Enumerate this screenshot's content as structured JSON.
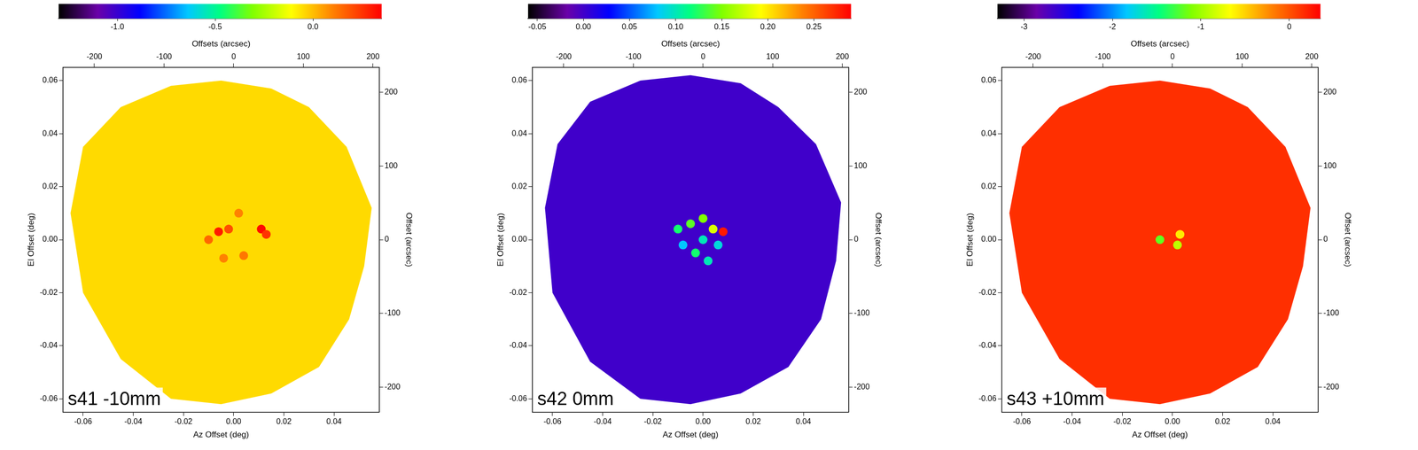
{
  "chart_data": [
    {
      "type": "scan_map",
      "title": "s41 -10mm",
      "x_label": "Az Offset (deg)",
      "y_label": "El Offset (deg)",
      "x2_label": "Offsets (arcsec)",
      "y2_label": "Offset (arcsec)",
      "xlim": [
        -0.068,
        0.058
      ],
      "xticks": [
        -0.06,
        -0.04,
        -0.02,
        {
          "value": 0,
          "label": "0.00"
        },
        0.02,
        0.04
      ],
      "ylim": [
        -0.065,
        0.065
      ],
      "yticks": [
        -0.06,
        -0.04,
        -0.02,
        {
          "value": 0,
          "label": "0.00"
        },
        0.02,
        0.04,
        0.06
      ],
      "x2lim": [
        -245,
        209
      ],
      "x2ticks": [
        -200,
        -100,
        0,
        100,
        200
      ],
      "y2lim": [
        -234,
        234
      ],
      "y2ticks": [
        -200,
        -100,
        0,
        100,
        200
      ],
      "grid": false,
      "colorbar": {
        "range": [
          -1.3,
          0.35
        ],
        "ticks": [
          {
            "value": -1,
            "label": "-1.0"
          },
          -0.5,
          {
            "value": 0,
            "label": "0.0"
          }
        ]
      },
      "coverage": {
        "x": [
          -0.065,
          -0.06,
          -0.045,
          -0.025,
          -0.005,
          0.015,
          0.03,
          0.045,
          0.055,
          0.052,
          0.046,
          0.034,
          0.015,
          -0.005,
          -0.025,
          -0.045,
          -0.06
        ],
        "y": [
          0.01,
          0.035,
          0.05,
          0.058,
          0.06,
          0.057,
          0.05,
          0.035,
          0.012,
          -0.01,
          -0.03,
          -0.048,
          -0.058,
          -0.062,
          -0.06,
          -0.045,
          -0.02
        ],
        "value": -0.05
      },
      "features": {
        "x": [
          -0.006,
          -0.002,
          0.011,
          0.013,
          -0.01,
          0.004,
          -0.004,
          0.002
        ],
        "y": [
          0.003,
          0.004,
          0.004,
          0.002,
          0.0,
          -0.006,
          -0.007,
          0.01
        ],
        "values": [
          0.3,
          0.2,
          0.33,
          0.25,
          0.15,
          0.12,
          0.1,
          0.1
        ]
      }
    },
    {
      "type": "scan_map",
      "title": "s42 0mm",
      "x_label": "Az Offset (deg)",
      "y_label": "El Offset (deg)",
      "x2_label": "Offsets (arcsec)",
      "y2_label": "Offset (arcsec)",
      "xlim": [
        -0.068,
        0.058
      ],
      "xticks": [
        -0.06,
        -0.04,
        -0.02,
        {
          "value": 0,
          "label": "0.00"
        },
        0.02,
        0.04
      ],
      "ylim": [
        -0.065,
        0.065
      ],
      "yticks": [
        -0.06,
        -0.04,
        -0.02,
        {
          "value": 0,
          "label": "0.00"
        },
        0.02,
        0.04,
        0.06
      ],
      "x2lim": [
        -245,
        209
      ],
      "x2ticks": [
        -200,
        -100,
        0,
        100,
        200
      ],
      "y2lim": [
        -234,
        234
      ],
      "y2ticks": [
        -200,
        -100,
        0,
        100,
        200
      ],
      "grid": false,
      "colorbar": {
        "range": [
          -0.06,
          0.29
        ],
        "ticks": [
          -0.05,
          {
            "value": 0,
            "label": "0.00"
          },
          0.05,
          {
            "value": 0.1,
            "label": "0.10"
          },
          0.15,
          {
            "value": 0.2,
            "label": "0.20"
          },
          0.25
        ]
      },
      "coverage": {
        "x": [
          -0.063,
          -0.058,
          -0.045,
          -0.025,
          -0.005,
          0.015,
          0.03,
          0.045,
          0.055,
          0.053,
          0.047,
          0.034,
          0.015,
          -0.005,
          -0.025,
          -0.045,
          -0.06
        ],
        "y": [
          0.012,
          0.036,
          0.052,
          0.06,
          0.062,
          0.059,
          0.05,
          0.036,
          0.014,
          -0.008,
          -0.03,
          -0.048,
          -0.058,
          -0.062,
          -0.06,
          -0.046,
          -0.02
        ],
        "value": 0.0
      },
      "features": {
        "x": [
          -0.01,
          -0.005,
          0.0,
          0.004,
          0.008,
          -0.003,
          0.002,
          -0.008,
          0.0,
          0.006
        ],
        "y": [
          0.004,
          0.006,
          0.008,
          0.004,
          0.003,
          -0.005,
          -0.008,
          -0.002,
          0.0,
          -0.002
        ],
        "values": [
          0.12,
          0.14,
          0.15,
          0.18,
          0.28,
          0.12,
          0.1,
          0.08,
          0.1,
          0.09
        ]
      }
    },
    {
      "type": "scan_map",
      "title": "s43 +10mm",
      "x_label": "Az Offset (deg)",
      "y_label": "El Offset (deg)",
      "x2_label": "Offsets (arcsec)",
      "y2_label": "Offset (arcsec)",
      "xlim": [
        -0.068,
        0.058
      ],
      "xticks": [
        -0.06,
        -0.04,
        -0.02,
        {
          "value": 0,
          "label": "0.00"
        },
        0.02,
        0.04
      ],
      "ylim": [
        -0.065,
        0.065
      ],
      "yticks": [
        -0.06,
        -0.04,
        -0.02,
        {
          "value": 0,
          "label": "0.00"
        },
        0.02,
        0.04,
        0.06
      ],
      "x2lim": [
        -245,
        209
      ],
      "x2ticks": [
        -200,
        -100,
        0,
        100,
        200
      ],
      "y2lim": [
        -234,
        234
      ],
      "y2ticks": [
        -200,
        -100,
        0,
        100,
        200
      ],
      "grid": false,
      "colorbar": {
        "range": [
          -3.3,
          0.35
        ],
        "ticks": [
          -3,
          -2,
          -1,
          0
        ]
      },
      "coverage": {
        "x": [
          -0.065,
          -0.06,
          -0.045,
          -0.025,
          -0.005,
          0.015,
          0.03,
          0.045,
          0.055,
          0.052,
          0.046,
          0.034,
          0.015,
          -0.005,
          -0.025,
          -0.045,
          -0.06
        ],
        "y": [
          0.01,
          0.035,
          0.05,
          0.058,
          0.06,
          0.057,
          0.05,
          0.035,
          0.012,
          -0.01,
          -0.03,
          -0.048,
          -0.058,
          -0.062,
          -0.06,
          -0.045,
          -0.02
        ],
        "value": 0.15
      },
      "features": {
        "x": [
          0.003,
          0.002,
          -0.005
        ],
        "y": [
          0.002,
          -0.002,
          0.0
        ],
        "values": [
          -0.6,
          -0.9,
          -1.2
        ]
      }
    }
  ]
}
